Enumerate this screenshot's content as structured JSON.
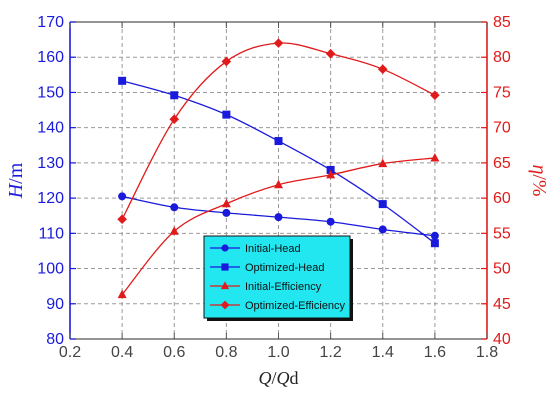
{
  "chart_data": {
    "type": "line",
    "x_label_parts": [
      {
        "text": "Q",
        "italic": true
      },
      {
        "text": "/",
        "italic": false
      },
      {
        "text": "Q",
        "italic": true
      },
      {
        "text": "d",
        "italic": false
      }
    ],
    "left_label_parts": [
      {
        "text": "H",
        "italic": true
      },
      {
        "text": "/m",
        "italic": false
      }
    ],
    "right_label_parts": [
      {
        "text": "η",
        "italic": true
      },
      {
        "text": "/%",
        "italic": false
      }
    ],
    "xlim": [
      0.2,
      1.8
    ],
    "ylim_left": [
      80,
      170
    ],
    "ylim_right": [
      40,
      85
    ],
    "x_ticks": [
      0.2,
      0.4,
      0.6,
      0.8,
      1.0,
      1.2,
      1.4,
      1.6,
      1.8
    ],
    "x_tick_labels": [
      "0.2",
      "0.4",
      "0.6",
      "0.8",
      "1.0",
      "1.2",
      "1.4",
      "1.6",
      "1.8"
    ],
    "left_ticks": [
      80,
      90,
      100,
      110,
      120,
      130,
      140,
      150,
      160,
      170
    ],
    "left_tick_labels": [
      "80",
      "90",
      "100",
      "110",
      "120",
      "130",
      "140",
      "150",
      "160",
      "170"
    ],
    "right_ticks": [
      40,
      45,
      50,
      55,
      60,
      65,
      70,
      75,
      80,
      85
    ],
    "right_tick_labels": [
      "40",
      "45",
      "50",
      "55",
      "60",
      "65",
      "70",
      "75",
      "80",
      "85"
    ],
    "grid": true,
    "legend_position": "lower-center",
    "legend_bg": "#22e6f0",
    "series": [
      {
        "name": "Initial-Head",
        "axis": "left",
        "color": "#1a1adc",
        "marker": "circle",
        "x": [
          0.4,
          0.6,
          0.8,
          1.0,
          1.2,
          1.4,
          1.6
        ],
        "y": [
          120.5,
          117.4,
          115.8,
          114.6,
          113.3,
          111.1,
          109.3
        ]
      },
      {
        "name": "Optimized-Head",
        "axis": "left",
        "color": "#1a1adc",
        "marker": "square",
        "x": [
          0.4,
          0.6,
          0.8,
          1.0,
          1.2,
          1.4,
          1.6
        ],
        "y": [
          153.3,
          149.2,
          143.7,
          136.2,
          128.0,
          118.3,
          107.2
        ]
      },
      {
        "name": "Initial-Efficiency",
        "axis": "right",
        "color": "#e11b1b",
        "marker": "triangle",
        "x": [
          0.4,
          0.6,
          0.8,
          1.0,
          1.2,
          1.4,
          1.6
        ],
        "y": [
          46.3,
          55.3,
          59.2,
          61.9,
          63.3,
          64.9,
          65.7
        ]
      },
      {
        "name": "Optimized-Efficiency",
        "axis": "right",
        "color": "#e11b1b",
        "marker": "diamond",
        "x": [
          0.4,
          0.6,
          0.8,
          1.0,
          1.2,
          1.4,
          1.6
        ],
        "y": [
          57.0,
          71.2,
          79.4,
          82.0,
          80.5,
          78.3,
          74.6
        ]
      }
    ]
  }
}
